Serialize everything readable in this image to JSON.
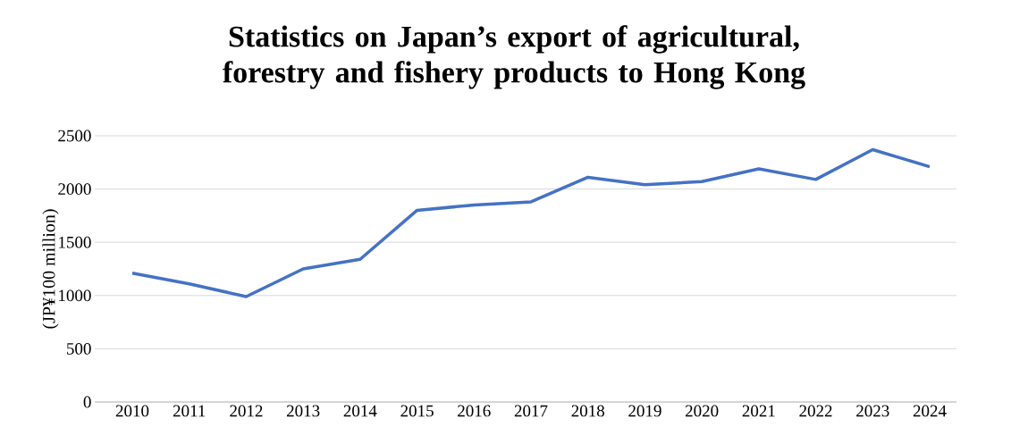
{
  "chart_data": {
    "type": "line",
    "title": "Statistics on Japan’s export of agricultural, forestry and fishery products to Hong Kong",
    "ylabel": "(JP¥100 million)",
    "categories": [
      "2010",
      "2011",
      "2012",
      "2013",
      "2014",
      "2015",
      "2016",
      "2017",
      "2018",
      "2019",
      "2020",
      "2021",
      "2022",
      "2023",
      "2024"
    ],
    "series": [
      {
        "color": "#4472c4",
        "values": [
          1210,
          1110,
          990,
          1250,
          1340,
          1800,
          1850,
          1880,
          2110,
          2040,
          2070,
          2190,
          2090,
          2370,
          2210
        ]
      }
    ],
    "ylim": [
      0,
      2500
    ],
    "yticks": [
      0,
      500,
      1000,
      1500,
      2000,
      2500
    ],
    "grid": "y",
    "marker": "none",
    "line_style": "solid"
  }
}
